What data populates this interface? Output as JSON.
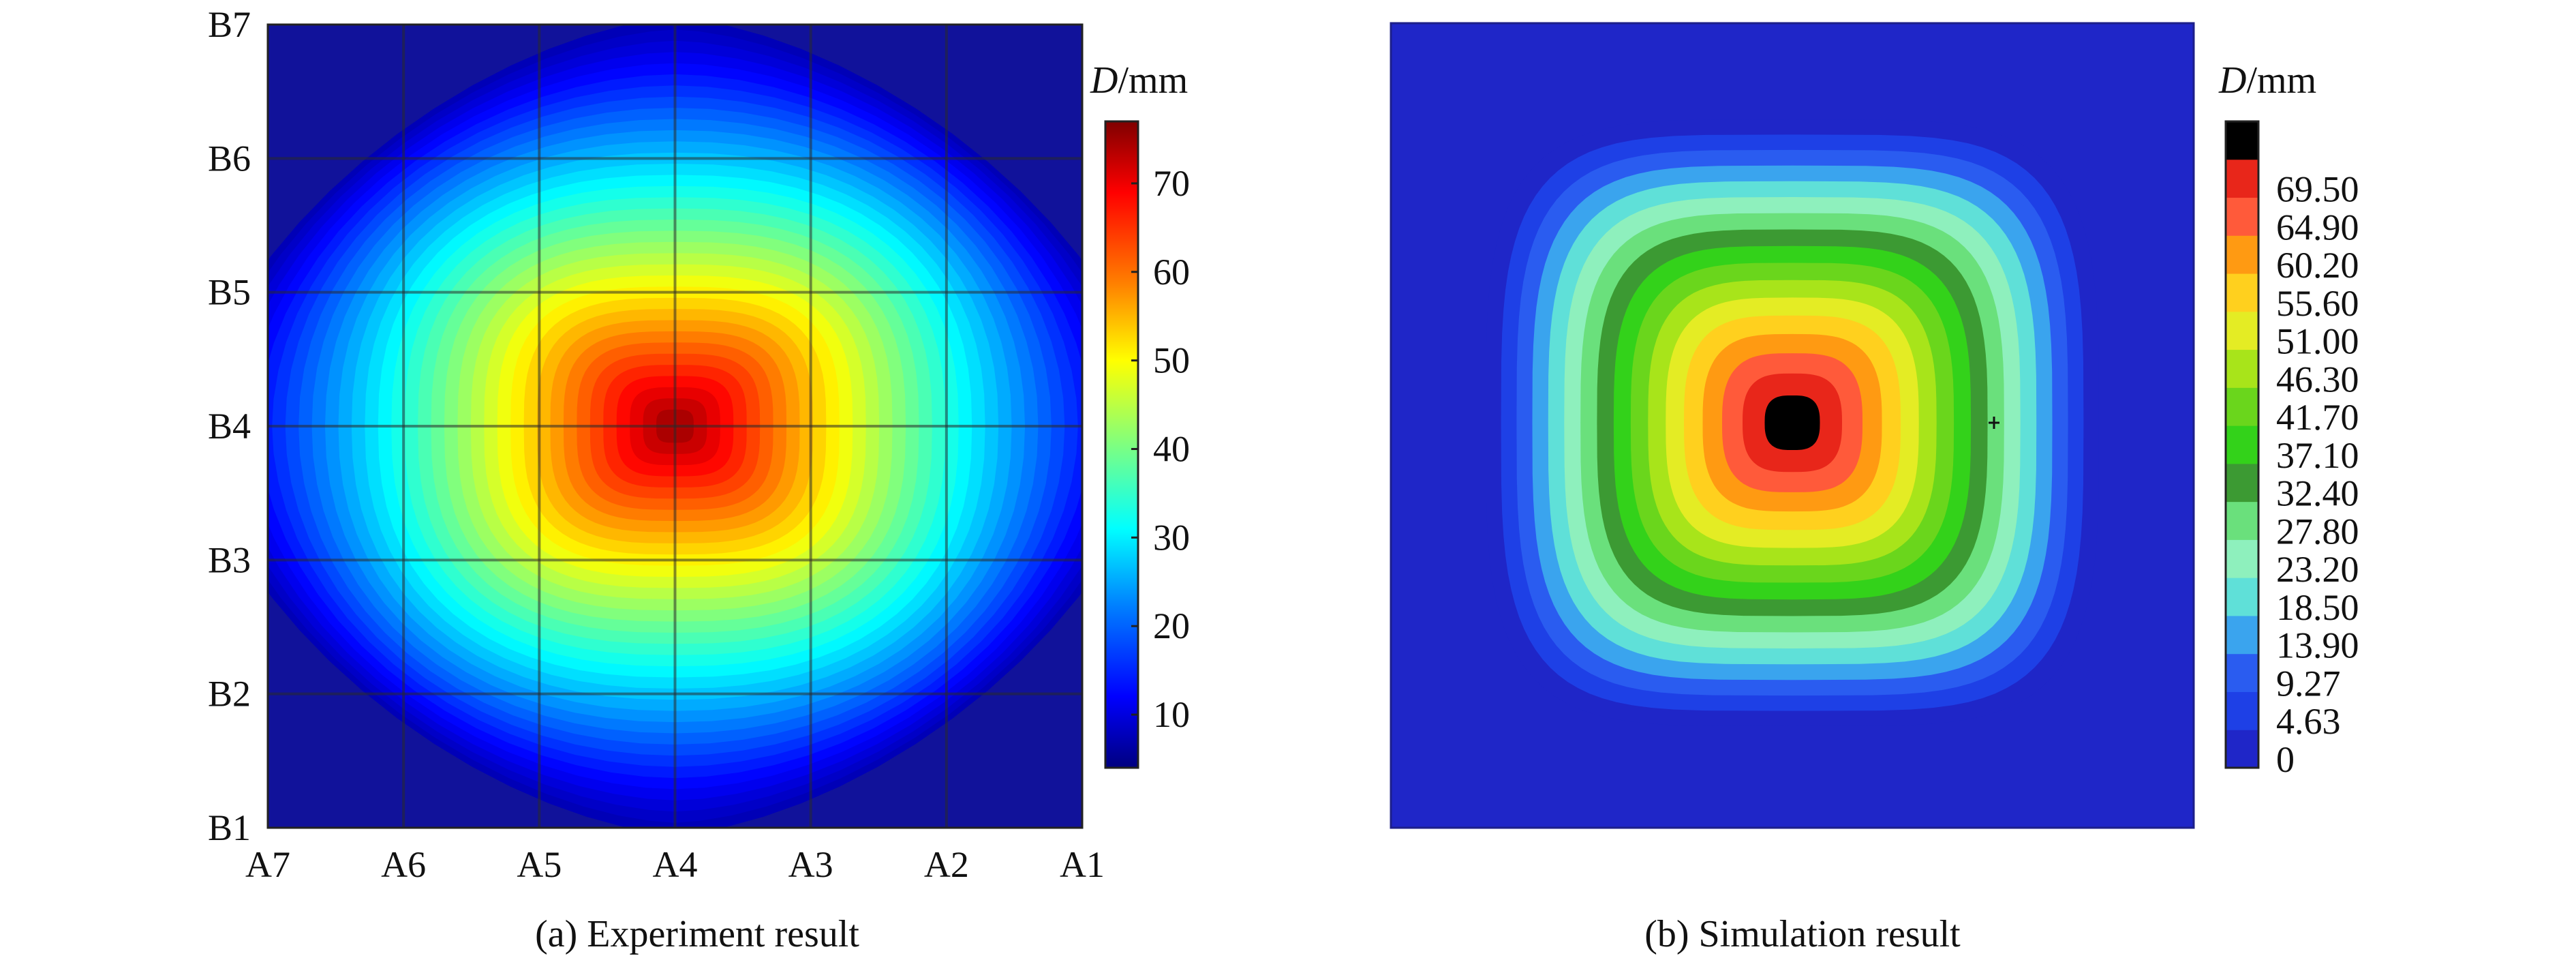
{
  "chart_data": [
    {
      "type": "heatmap",
      "title": "",
      "caption": "(a) Experiment result",
      "x_ticks": [
        "A7",
        "A6",
        "A5",
        "A4",
        "A3",
        "A2",
        "A1"
      ],
      "y_ticks": [
        "B7",
        "B6",
        "B5",
        "B4",
        "B3",
        "B2",
        "B1"
      ],
      "grid": true,
      "colorbar": {
        "label_var": "D",
        "label_unit": "/mm",
        "range": [
          4,
          77
        ],
        "ticks": [
          10,
          20,
          30,
          40,
          50,
          60,
          70
        ],
        "placement": "right"
      },
      "field": {
        "peak_value": 76,
        "peak_location": [
          "A4",
          "B4"
        ],
        "edge_value": 8,
        "shape": "elliptical, elongated along A axis"
      }
    },
    {
      "type": "heatmap",
      "title": "",
      "caption": "(b) Simulation result",
      "grid": false,
      "colorbar": {
        "label_var": "D",
        "label_unit": "/mm",
        "range": [
          0,
          74.1
        ],
        "levels": [
          "0",
          "4.63",
          "9.27",
          "13.90",
          "18.50",
          "23.20",
          "27.80",
          "32.40",
          "37.10",
          "41.70",
          "46.30",
          "51.00",
          "55.60",
          "60.20",
          "64.90",
          "69.50"
        ],
        "placement": "right"
      },
      "field": {
        "peak_value": 69.5,
        "background_value": 0,
        "shape": "concentric contours centred in the plot"
      }
    }
  ],
  "colors": {
    "jet_stops": [
      "#00007f",
      "#0000ff",
      "#007fff",
      "#00ffff",
      "#7fff7f",
      "#ffff00",
      "#ff7f00",
      "#ff0000",
      "#7f0000"
    ],
    "background_blue": "#1e3ccf",
    "contour_levels": [
      "#1f26c8",
      "#1e40e6",
      "#2a5cf0",
      "#3aa4ee",
      "#5fe0d8",
      "#8ef0bd",
      "#6ae07c",
      "#3c9a33",
      "#33d21a",
      "#6ad61c",
      "#a8e41a",
      "#e4ec24",
      "#ffd01e",
      "#ff9a12",
      "#ff5a3a",
      "#e8261a",
      "#000000"
    ]
  }
}
